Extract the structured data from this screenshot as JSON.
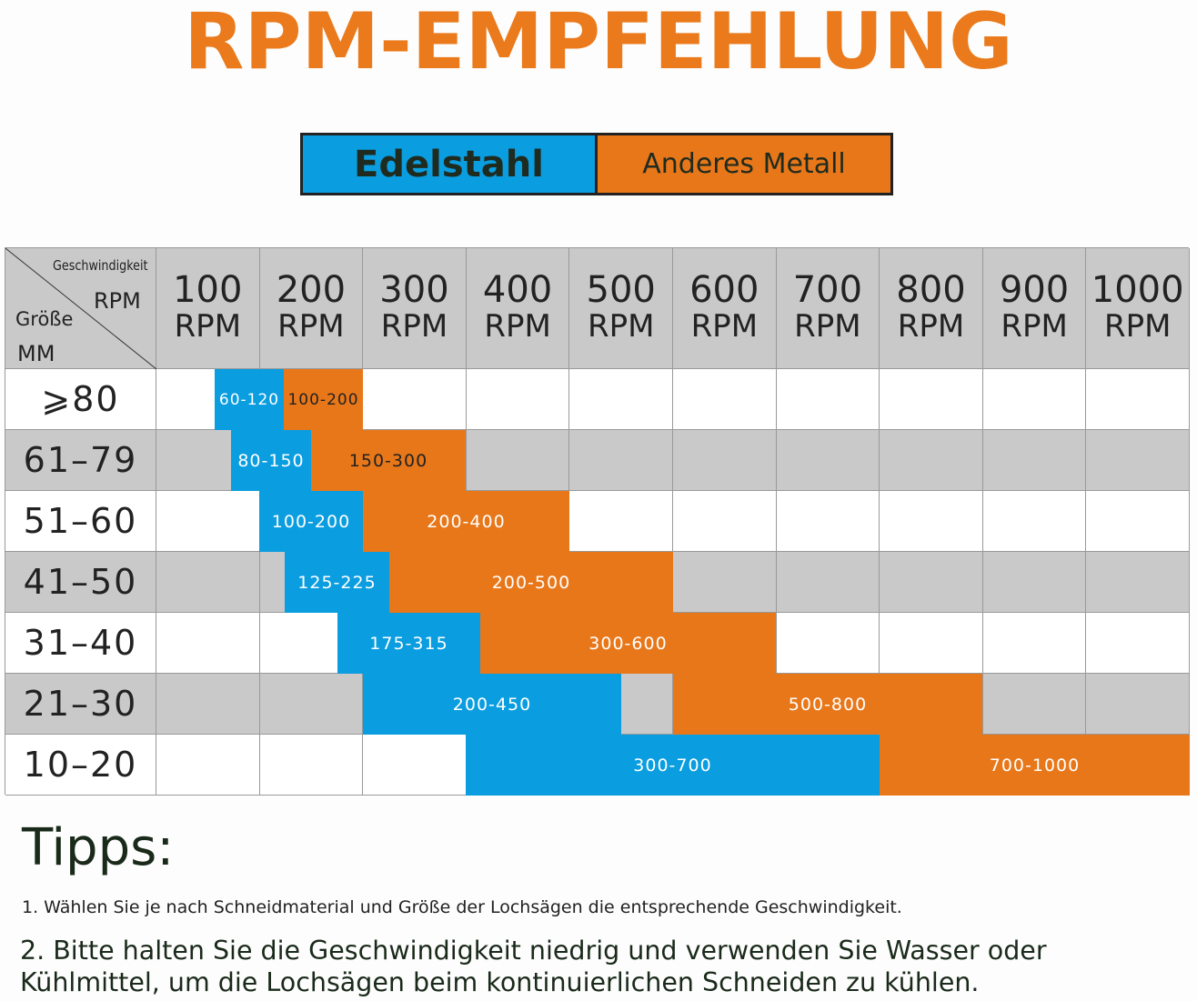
{
  "title": "RPM-EMPFEHLUNG",
  "legend": [
    "Edelstahl",
    "Anderes Metall"
  ],
  "table": {
    "corner": {
      "speed": "Geschwindigkeit",
      "rpm": "RPM",
      "size": "Größe",
      "mm": "MM"
    },
    "columns": [
      [
        "100",
        "RPM"
      ],
      [
        "200",
        "RPM"
      ],
      [
        "300",
        "RPM"
      ],
      [
        "400",
        "RPM"
      ],
      [
        "500",
        "RPM"
      ],
      [
        "600",
        "RPM"
      ],
      [
        "700",
        "RPM"
      ],
      [
        "800",
        "RPM"
      ],
      [
        "900",
        "RPM"
      ],
      [
        "1000",
        "RPM"
      ]
    ],
    "rows": [
      {
        "size": "⩾80",
        "stainless": "60-120",
        "other": "100-200"
      },
      {
        "size": "61–79",
        "stainless": "80-150",
        "other": "150-300"
      },
      {
        "size": "51–60",
        "stainless": "100-200",
        "other": "200-400"
      },
      {
        "size": "41–50",
        "stainless": "125-225",
        "other": "200-500"
      },
      {
        "size": "31–40",
        "stainless": "175-315",
        "other": "300-600"
      },
      {
        "size": "21–30",
        "stainless": "200-450",
        "other": "500-800"
      },
      {
        "size": "10–20",
        "stainless": "300-700",
        "other": "700-1000"
      }
    ]
  },
  "tips": {
    "heading": "Tipps:",
    "items": [
      "1. Wählen Sie je nach Schneidmaterial und Größe der Lochsägen die entsprechende Geschwindigkeit.",
      "2. Bitte halten Sie die Geschwindigkeit niedrig und verwenden Sie Wasser oder Kühlmittel, um die Lochsägen beim kontinuierlichen Schneiden zu kühlen."
    ]
  }
}
